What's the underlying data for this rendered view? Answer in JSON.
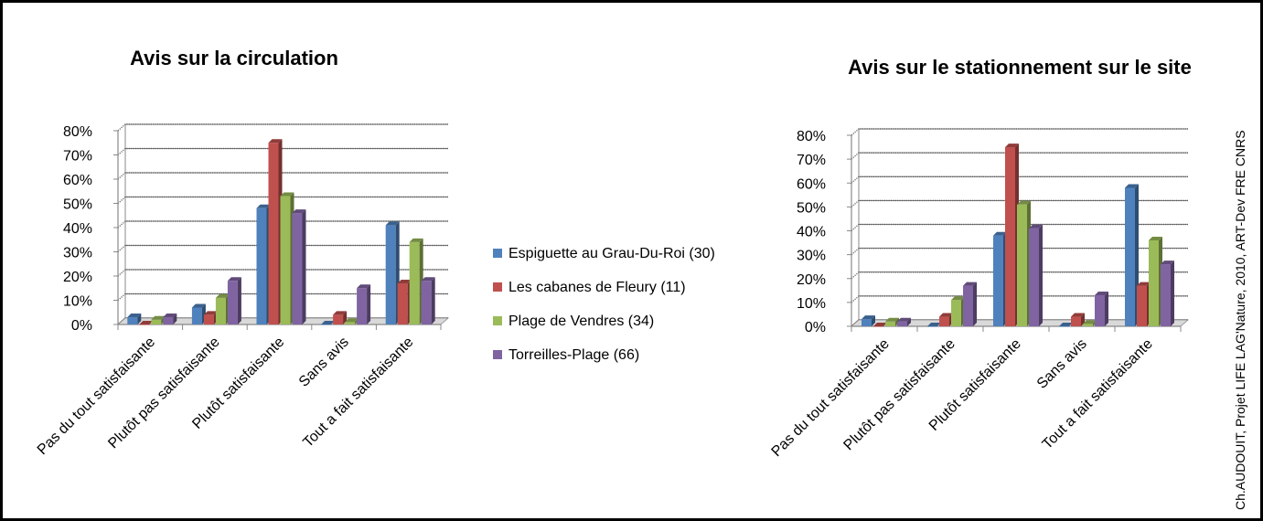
{
  "chart_data": [
    {
      "type": "bar",
      "title": "Avis sur la circulation",
      "categories": [
        "Pas du tout satisfaisante",
        "Plutôt pas satisfaisante",
        "Plutôt satisfaisante",
        "Sans avis",
        "Tout a fait satisfaisante"
      ],
      "series": [
        {
          "name": "Espiguette au Grau-Du-Roi (30)",
          "values": [
            3,
            7,
            48,
            0,
            41
          ]
        },
        {
          "name": "Les cabanes de Fleury (11)",
          "values": [
            0,
            4,
            75,
            4,
            17
          ]
        },
        {
          "name": "Plage de Vendres (34)",
          "values": [
            2,
            11,
            53,
            1,
            34
          ]
        },
        {
          "name": "Torreilles-Plage (66)",
          "values": [
            3,
            18,
            46,
            15,
            18
          ]
        }
      ],
      "yticks": [
        "0%",
        "10%",
        "20%",
        "30%",
        "40%",
        "50%",
        "60%",
        "70%",
        "80%"
      ],
      "ylim": [
        0,
        80
      ],
      "grid": true
    },
    {
      "type": "bar",
      "title": "Avis sur le stationnement sur le site",
      "categories": [
        "Pas du tout satisfaisante",
        "Plutôt pas satisfaisante",
        "Plutôt satisfaisante",
        "Sans avis",
        "Tout a fait satisfaisante"
      ],
      "series": [
        {
          "name": "Espiguette au Grau-Du-Roi (30)",
          "values": [
            3,
            0,
            38,
            0,
            58
          ]
        },
        {
          "name": "Les cabanes de Fleury (11)",
          "values": [
            0,
            4,
            75,
            4,
            17
          ]
        },
        {
          "name": "Plage de Vendres (34)",
          "values": [
            2,
            11,
            51,
            1,
            36
          ]
        },
        {
          "name": "Torreilles-Plage (66)",
          "values": [
            2,
            17,
            41,
            13,
            26
          ]
        }
      ],
      "yticks": [
        "0%",
        "10%",
        "20%",
        "30%",
        "40%",
        "50%",
        "60%",
        "70%",
        "80%"
      ],
      "ylim": [
        0,
        80
      ],
      "grid": true
    }
  ],
  "legend": [
    {
      "label": "Espiguette au Grau-Du-Roi (30)",
      "color": "#4F81BD"
    },
    {
      "label": "Les cabanes de Fleury (11)",
      "color": "#C0504D"
    },
    {
      "label": "Plage de Vendres (34)",
      "color": "#9BBB59"
    },
    {
      "label": "Torreilles-Plage (66)",
      "color": "#8064A2"
    }
  ],
  "credit": "Ch.AUDOUIT, Projet LIFE LAG'Nature, 2010, ART-Dev FRE CNRS"
}
